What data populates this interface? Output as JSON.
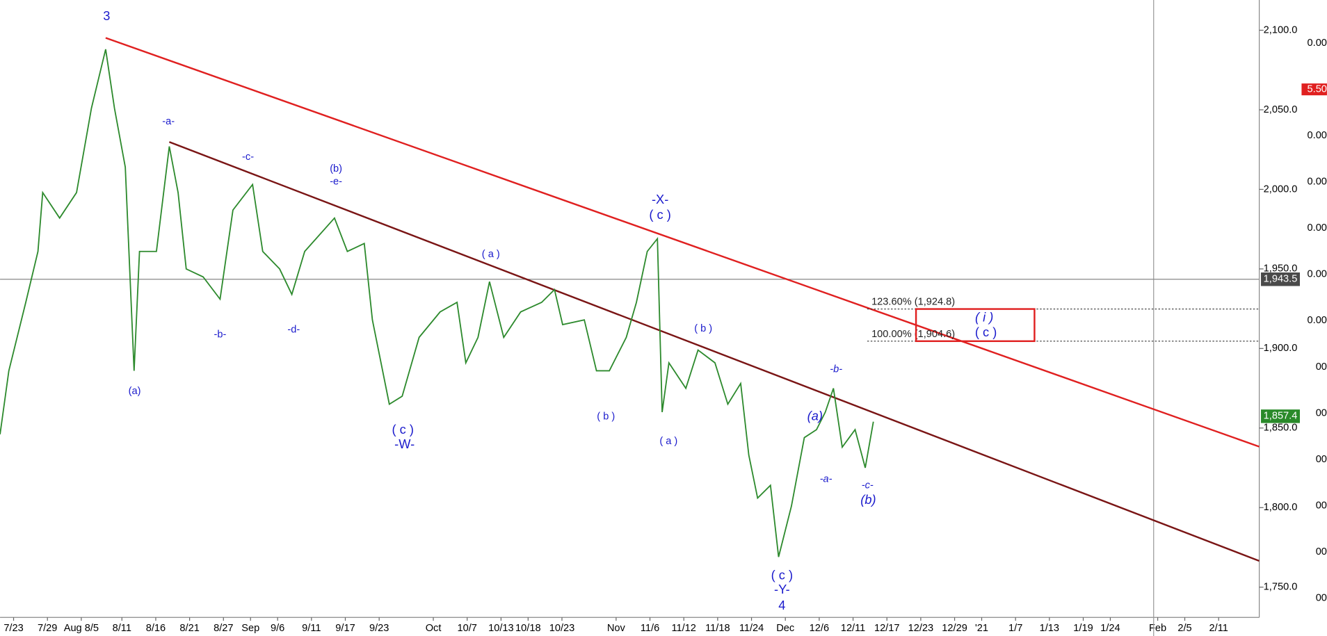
{
  "chart_data": {
    "type": "line",
    "x": [
      0,
      1.3,
      3.8,
      5.6,
      6.3,
      8.8,
      11.3,
      13.5,
      15.6,
      16.9,
      18.5,
      19.8,
      20.6,
      23.1,
      25,
      26.3,
      27.5,
      30,
      32.5,
      34.4,
      37.3,
      38.8,
      41.3,
      43.1,
      45,
      49.4,
      51.3,
      53.8,
      55,
      57.5,
      59.4,
      61.9,
      65,
      67.5,
      68.8,
      70.6,
      72.3,
      74.4,
      76.9,
      80,
      81.9,
      83.1,
      86.3,
      88.1,
      90,
      92.5,
      94,
      95.6,
      97.1,
      97.8,
      98.8,
      101.3,
      103.1,
      105.6,
      107.5,
      109.4,
      110.6,
      111.9,
      113.8,
      115,
      116.9,
      118.8,
      120.6,
      121.9,
      123.1,
      124.4,
      126.3,
      127.8,
      129
    ],
    "series": [
      {
        "color": "#2d8a2d",
        "values": [
          1846,
          1886,
          1929,
          1961,
          1998,
          1982,
          1998,
          2051,
          2088,
          2051,
          2014,
          1886,
          1961,
          1961,
          2027,
          1998,
          1950,
          1945,
          1931,
          1987,
          2003,
          1961,
          1950,
          1934,
          1961,
          1982,
          1961,
          1966,
          1918,
          1865,
          1870,
          1907,
          1923,
          1929,
          1891,
          1907,
          1942,
          1907,
          1923,
          1929,
          1937,
          1915,
          1918,
          1886,
          1886,
          1907,
          1929,
          1961,
          1969,
          1860,
          1891,
          1875,
          1899,
          1891,
          1865,
          1878,
          1833,
          1806,
          1814,
          1769,
          1801,
          1844,
          1849,
          1860,
          1875,
          1838,
          1849,
          1825,
          1854
        ]
      }
    ],
    "xlim": [
      0,
      186
    ],
    "xticks": [
      {
        "value": 2,
        "label": "7/23"
      },
      {
        "value": 7,
        "label": "7/29"
      },
      {
        "value": 12,
        "label": "Aug 8/5"
      },
      {
        "value": 18,
        "label": "8/11"
      },
      {
        "value": 23,
        "label": "8/16"
      },
      {
        "value": 28,
        "label": "8/21"
      },
      {
        "value": 33,
        "label": "8/27"
      },
      {
        "value": 37,
        "label": "Sep"
      },
      {
        "value": 41,
        "label": "9/6"
      },
      {
        "value": 46,
        "label": "9/11"
      },
      {
        "value": 51,
        "label": "9/17"
      },
      {
        "value": 56,
        "label": "9/23"
      },
      {
        "value": 64,
        "label": "Oct"
      },
      {
        "value": 69,
        "label": "10/7"
      },
      {
        "value": 74,
        "label": "10/13"
      },
      {
        "value": 78,
        "label": "10/18"
      },
      {
        "value": 83,
        "label": "10/23"
      },
      {
        "value": 91,
        "label": "Nov"
      },
      {
        "value": 96,
        "label": "11/6"
      },
      {
        "value": 101,
        "label": "11/12"
      },
      {
        "value": 106,
        "label": "11/18"
      },
      {
        "value": 111,
        "label": "11/24"
      },
      {
        "value": 116,
        "label": "Dec"
      },
      {
        "value": 121,
        "label": "12/6"
      },
      {
        "value": 126,
        "label": "12/11"
      },
      {
        "value": 131,
        "label": "12/17"
      },
      {
        "value": 136,
        "label": "12/23"
      },
      {
        "value": 141,
        "label": "12/29"
      },
      {
        "value": 145,
        "label": "'21"
      },
      {
        "value": 150,
        "label": "1/7"
      },
      {
        "value": 155,
        "label": "1/13"
      },
      {
        "value": 160,
        "label": "1/19"
      },
      {
        "value": 164,
        "label": "1/24"
      },
      {
        "value": 171,
        "label": "Feb"
      },
      {
        "value": 175,
        "label": "2/5"
      },
      {
        "value": 180,
        "label": "2/11"
      }
    ],
    "ylim": [
      1731,
      2119
    ],
    "yticks": [
      {
        "value": 1750,
        "label": "1,750.0"
      },
      {
        "value": 1800,
        "label": "1,800.0"
      },
      {
        "value": 1850,
        "label": "1,850.0"
      },
      {
        "value": 1900,
        "label": "1,900.0"
      },
      {
        "value": 1950,
        "label": "1,950.0"
      },
      {
        "value": 2000,
        "label": "2,000.0"
      },
      {
        "value": 2050,
        "label": "2,050.0"
      },
      {
        "value": 2100,
        "label": "2,100.0"
      }
    ],
    "clipped_labels": [
      "0.00",
      "5.50",
      "0.00",
      "0.00",
      "0.00",
      "0.00",
      "0.00",
      "00",
      "00",
      "00",
      "00",
      "00",
      "00"
    ],
    "price_labels": [
      {
        "value": 1943.5,
        "label": "1,943.5",
        "color": "#4a4a4a"
      },
      {
        "value": 1857.4,
        "label": "1,857.4",
        "color": "#2a8a2a"
      }
    ],
    "trendlines": [
      {
        "color": "#e02020",
        "x": [
          15.6,
          186
        ],
        "y": [
          2095.2,
          1838.3
        ]
      },
      {
        "color": "#7a1515",
        "x": [
          25,
          186
        ],
        "y": [
          2029.8,
          1766.5
        ]
      }
    ],
    "marker_x": 170.4,
    "fib_levels": [
      {
        "value": 1924.8,
        "label": "123.60% (1,924.8)"
      },
      {
        "value": 1904.6,
        "label": "100.00% (1,904.6)"
      }
    ],
    "fib_start_x": 128.1,
    "target_box": {
      "x": [
        135.3,
        152.8
      ],
      "y": [
        1924.8,
        1904.6
      ],
      "color": "#e02020"
    },
    "annotations": [
      "3",
      "-a-",
      "-c-",
      "(b)",
      "-e-",
      "(a)",
      "-b-",
      "-d-",
      "( c )",
      "-W-",
      "( a )",
      "-X-",
      "( c )",
      "( b )",
      "( a )",
      "( b )",
      "( c )",
      "-Y-",
      "4",
      "(a)",
      "-b-",
      "-a-",
      "-c-",
      "(b)",
      "( i )",
      "( c )"
    ]
  }
}
